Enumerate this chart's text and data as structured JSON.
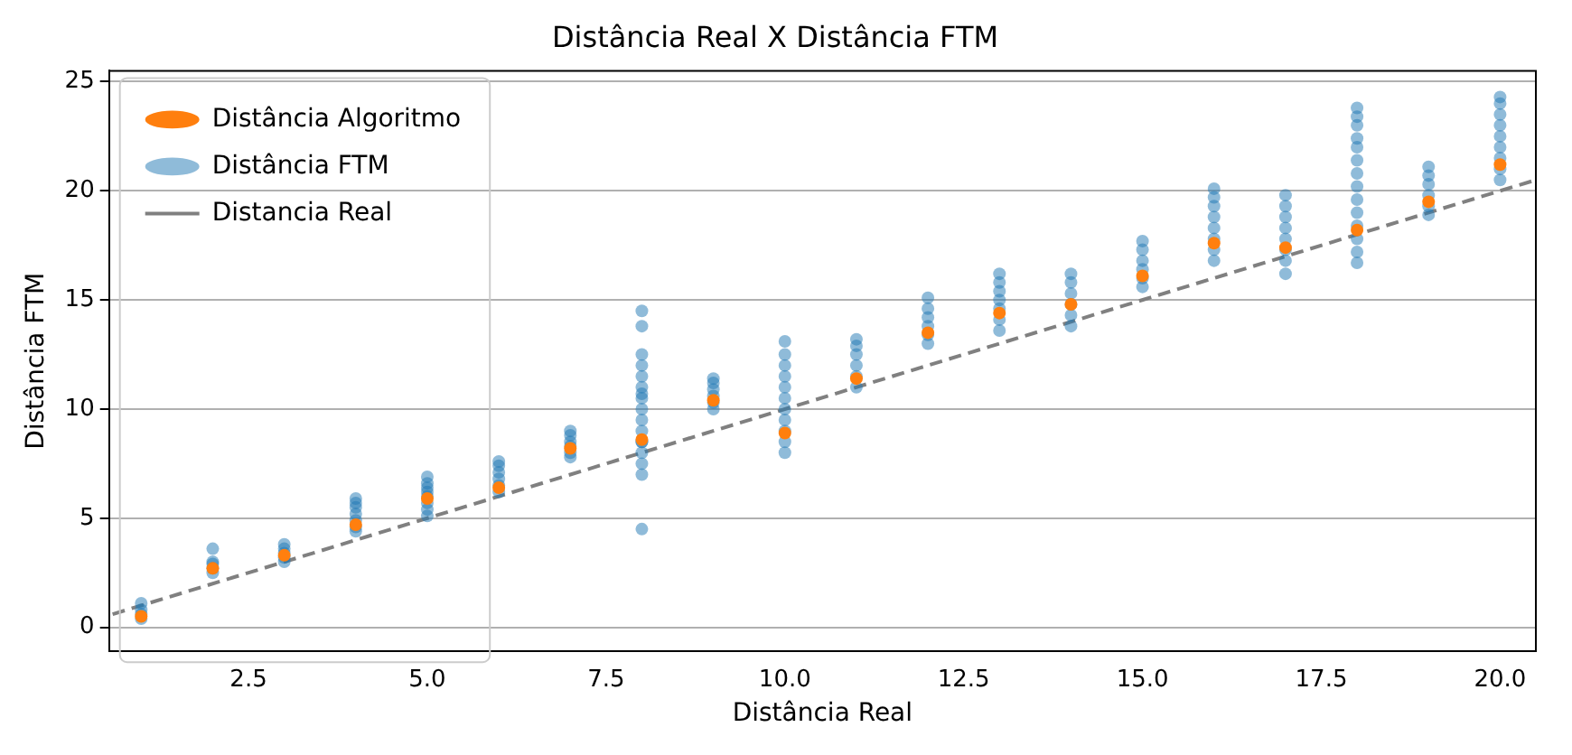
{
  "chart_data": {
    "type": "scatter",
    "title": "Distância Real X Distância FTM",
    "xlabel": "Distância Real",
    "ylabel": "Distância FTM",
    "xlim": [
      0.55,
      20.5
    ],
    "ylim": [
      -1.1,
      25.5
    ],
    "xticks": [
      {
        "value": 2.5,
        "label": "2.5"
      },
      {
        "value": 5,
        "label": "5.0"
      },
      {
        "value": 7.5,
        "label": "7.5"
      },
      {
        "value": 10,
        "label": "10.0"
      },
      {
        "value": 12.5,
        "label": "12.5"
      },
      {
        "value": 15,
        "label": "15.0"
      },
      {
        "value": 17.5,
        "label": "17.5"
      },
      {
        "value": 20,
        "label": "20.0"
      }
    ],
    "yticks": [
      0,
      5,
      10,
      15,
      20,
      25
    ],
    "grid": "y",
    "legend": "top left",
    "marker": "circle",
    "series": [
      {
        "name": "Distância FTM",
        "type": "scatter",
        "color": "#1f77b4",
        "x": [
          1,
          1,
          1,
          1,
          2,
          2,
          2,
          2,
          2,
          3,
          3,
          3,
          3,
          3,
          4,
          4,
          4,
          4,
          4,
          4,
          4,
          5,
          5,
          5,
          5,
          5,
          5,
          5,
          5,
          6,
          6,
          6,
          6,
          6,
          6,
          7,
          7,
          7,
          7,
          7,
          7,
          8,
          8,
          8,
          8,
          8,
          8,
          8,
          8,
          8,
          8,
          8,
          8,
          8,
          8,
          8,
          8,
          8,
          9,
          9,
          9,
          9,
          9,
          9,
          10,
          10,
          10,
          10,
          10,
          10,
          10,
          10,
          10,
          10,
          10,
          11,
          11,
          11,
          11,
          11,
          11,
          12,
          12,
          12,
          12,
          12,
          12,
          13,
          13,
          13,
          13,
          13,
          13,
          13,
          14,
          14,
          14,
          14,
          14,
          14,
          15,
          15,
          15,
          15,
          15,
          15,
          16,
          16,
          16,
          16,
          16,
          16,
          16,
          16,
          17,
          17,
          17,
          17,
          17,
          17,
          17,
          17,
          18,
          18,
          18,
          18,
          18,
          18,
          18,
          18,
          18,
          18,
          18,
          18,
          18,
          18,
          19,
          19,
          19,
          19,
          19,
          19,
          20,
          20,
          20,
          20,
          20,
          20,
          20,
          20,
          20
        ],
        "values": [
          0.4,
          0.6,
          0.8,
          1.1,
          2.5,
          2.7,
          2.9,
          3.0,
          3.6,
          3.0,
          3.2,
          3.4,
          3.6,
          3.8,
          4.4,
          4.6,
          4.9,
          5.2,
          5.5,
          5.7,
          5.9,
          5.1,
          5.4,
          5.7,
          6.0,
          6.2,
          6.4,
          6.6,
          6.9,
          6.2,
          6.5,
          6.8,
          7.1,
          7.4,
          7.6,
          7.8,
          8.0,
          8.3,
          8.5,
          8.8,
          9.0,
          4.5,
          7.0,
          7.5,
          8.0,
          8.5,
          9.0,
          9.5,
          10.0,
          10.5,
          11.0,
          11.5,
          12.0,
          12.5,
          13.8,
          14.5,
          8.5,
          10.7,
          10.0,
          10.3,
          10.6,
          10.9,
          11.2,
          11.4,
          8.0,
          8.5,
          9.0,
          9.5,
          10.0,
          10.5,
          11.0,
          11.5,
          12.0,
          12.5,
          13.1,
          11.0,
          11.5,
          12.0,
          12.5,
          12.9,
          13.2,
          13.0,
          13.4,
          13.8,
          14.2,
          14.6,
          15.1,
          13.6,
          14.1,
          14.6,
          15.0,
          15.4,
          15.8,
          16.2,
          13.8,
          14.3,
          14.8,
          15.3,
          15.8,
          16.2,
          15.6,
          16.0,
          16.4,
          16.8,
          17.3,
          17.7,
          16.8,
          17.3,
          17.8,
          18.3,
          18.8,
          19.3,
          19.7,
          20.1,
          16.2,
          16.8,
          17.3,
          17.8,
          18.3,
          18.8,
          19.3,
          19.8,
          16.7,
          17.2,
          17.8,
          18.4,
          19.0,
          19.6,
          20.2,
          20.8,
          21.4,
          22.0,
          22.4,
          23.0,
          23.4,
          23.8,
          18.9,
          19.3,
          19.8,
          20.3,
          20.7,
          21.1,
          20.5,
          21.0,
          21.5,
          22.0,
          22.5,
          23.0,
          23.5,
          24.0,
          24.3
        ]
      },
      {
        "name": "Distância Algoritmo",
        "type": "scatter",
        "color": "#ff7f0e",
        "x": [
          1,
          2,
          3,
          4,
          5,
          6,
          7,
          8,
          9,
          10,
          11,
          12,
          13,
          14,
          15,
          16,
          17,
          18,
          19,
          20
        ],
        "values": [
          0.5,
          2.7,
          3.3,
          4.7,
          5.9,
          6.4,
          8.2,
          8.6,
          10.4,
          8.9,
          11.4,
          13.5,
          14.4,
          14.8,
          16.1,
          17.6,
          17.4,
          18.2,
          19.5,
          21.2
        ]
      },
      {
        "name": "Distancia Real",
        "type": "line",
        "color": "#808080",
        "line_style": "dashed",
        "marker": "none",
        "x": [
          0.6,
          20.5
        ],
        "values": [
          0.6,
          20.5
        ]
      }
    ]
  }
}
